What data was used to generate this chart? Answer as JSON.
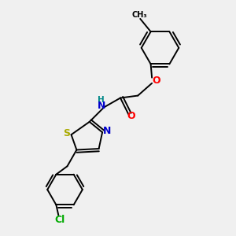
{
  "bg_color": "#f0f0f0",
  "bond_color": "#000000",
  "atom_colors": {
    "S": "#aaaa00",
    "N": "#0000cc",
    "O": "#ff0000",
    "Cl": "#00aa00",
    "H": "#008888",
    "C": "#000000"
  },
  "figsize": [
    3.0,
    3.0
  ],
  "dpi": 100,
  "xlim": [
    0,
    10
  ],
  "ylim": [
    0,
    10
  ]
}
